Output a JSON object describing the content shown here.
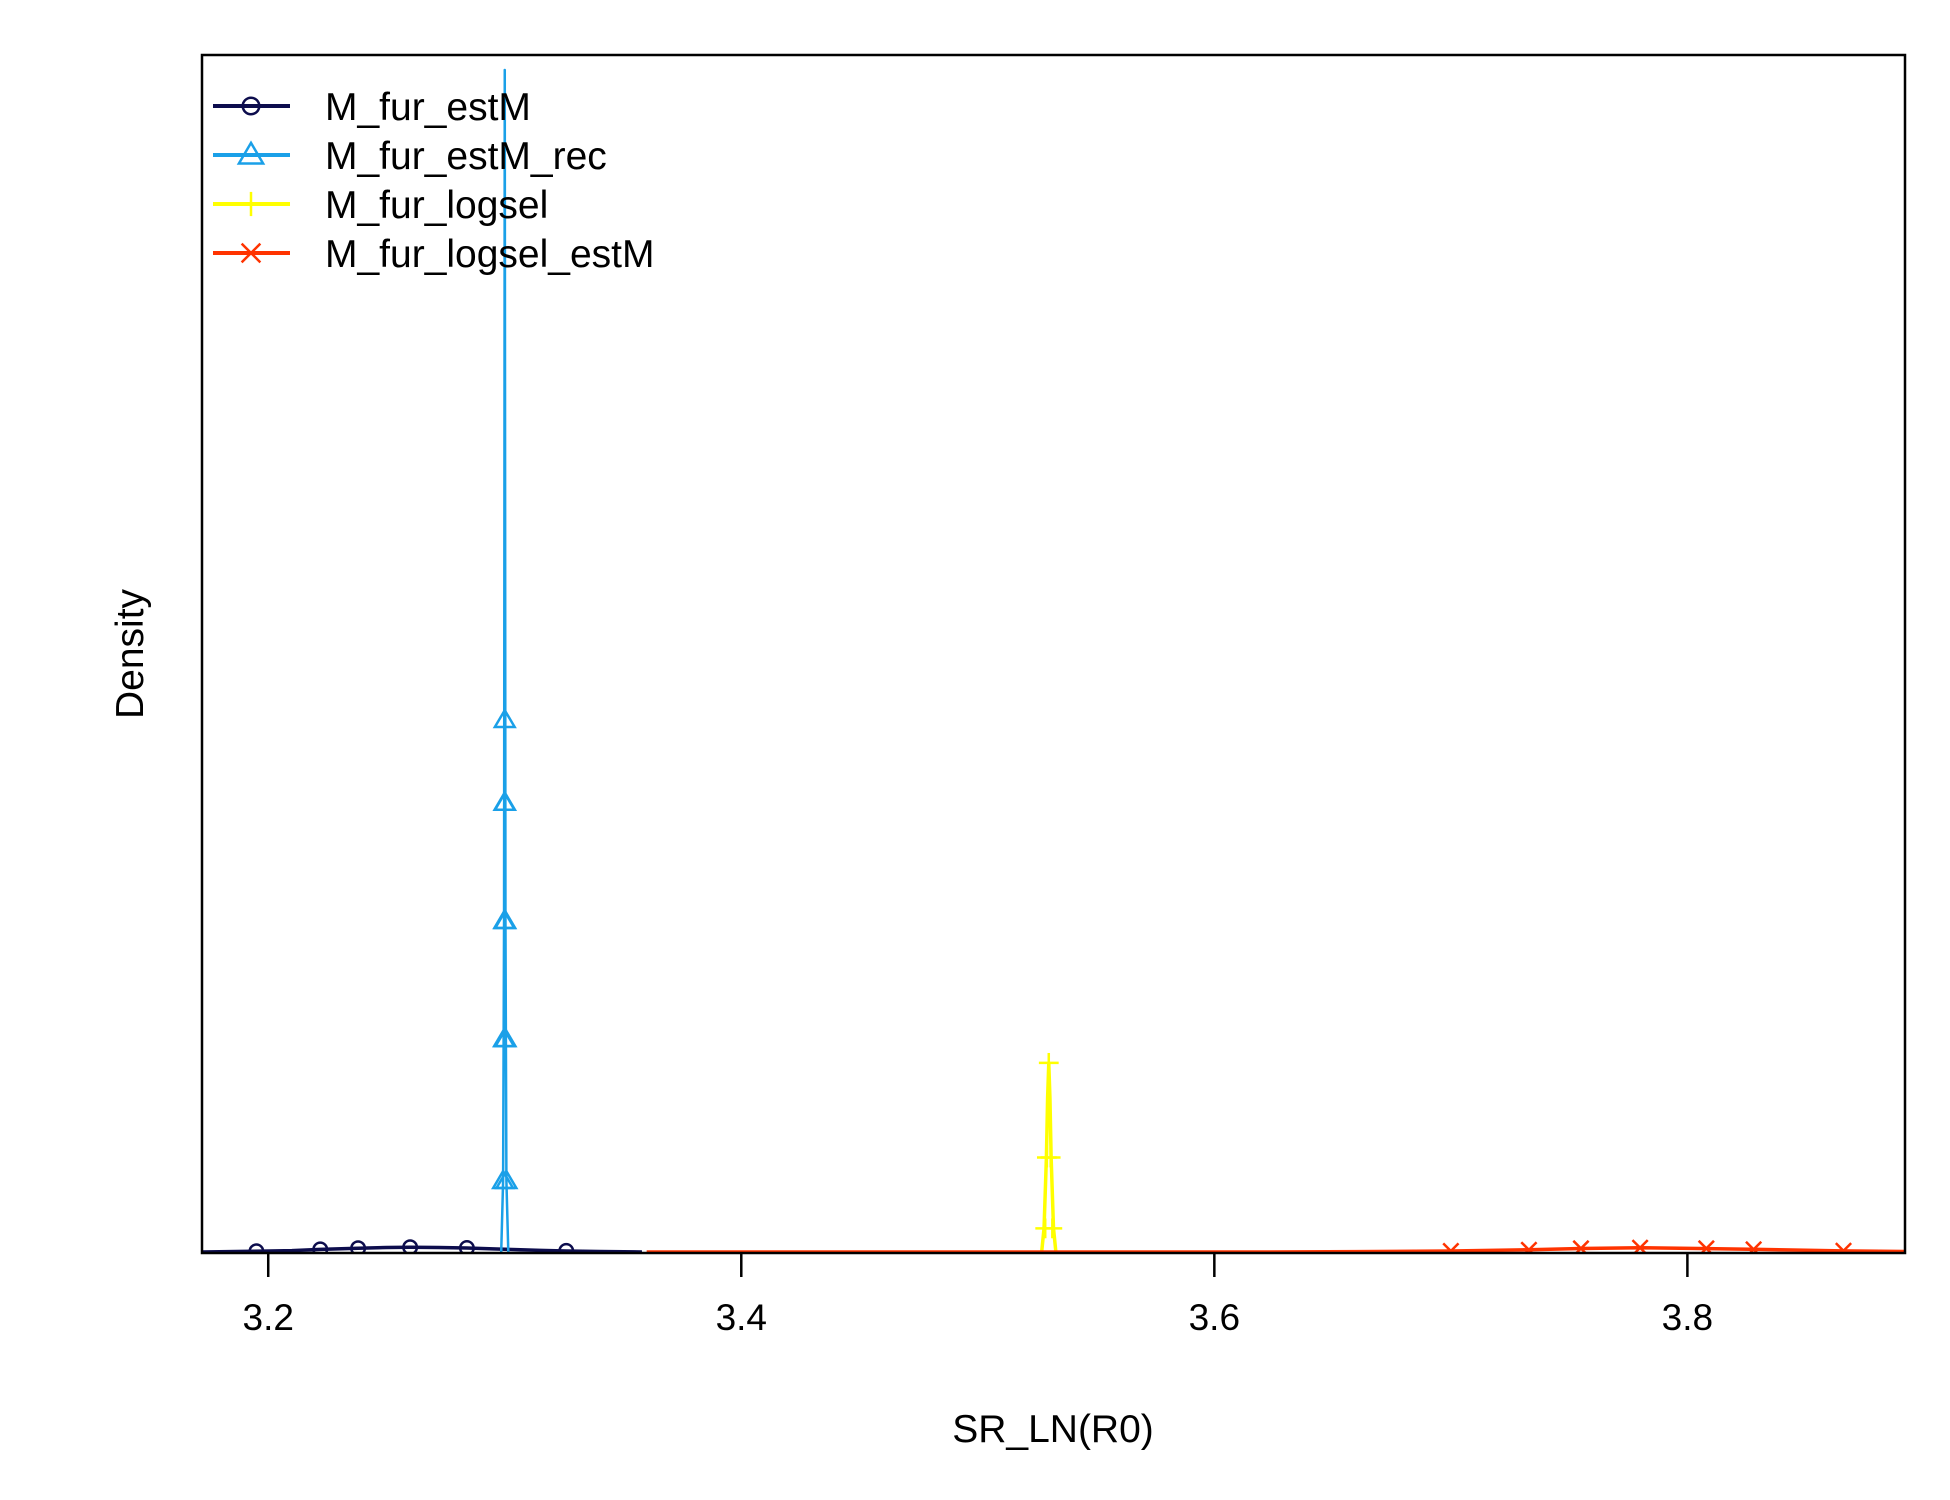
{
  "chart_data": {
    "type": "line",
    "title": "",
    "xlabel": "SR_LN(R0)",
    "ylabel": "Density",
    "xlim": [
      3.172,
      3.892
    ],
    "ylim": [
      0,
      1
    ],
    "xticks": [
      3.2,
      3.4,
      3.6,
      3.8
    ],
    "xtick_labels": [
      "3.2",
      "3.4",
      "3.6",
      "3.8"
    ],
    "y_tick_labels_shown": false,
    "grid": false,
    "legend_position": "top-left",
    "series": [
      {
        "name": "M_fur_estM",
        "color": "#0d0d4d",
        "marker": "circle",
        "x": [
          3.172,
          3.19,
          3.21,
          3.222,
          3.238,
          3.25,
          3.26,
          3.272,
          3.284,
          3.295,
          3.305,
          3.315,
          3.326,
          3.34,
          3.358
        ],
        "y": [
          0,
          0.0005,
          0.0012,
          0.0022,
          0.0032,
          0.0038,
          0.004,
          0.0038,
          0.0034,
          0.0026,
          0.002,
          0.0014,
          0.0009,
          0.0004,
          0
        ],
        "markers_x": [
          3.195,
          3.222,
          3.238,
          3.26,
          3.284,
          3.326
        ],
        "markers_y": [
          0.0006,
          0.0022,
          0.0032,
          0.004,
          0.0034,
          0.0009
        ]
      },
      {
        "name": "M_fur_estM_rec",
        "color": "#1aa0e8",
        "marker": "triangle",
        "x": [
          3.2985,
          3.2993,
          3.2997,
          3.3,
          3.3003,
          3.3007,
          3.3015
        ],
        "y": [
          0,
          0.06,
          0.28,
          1.0,
          0.28,
          0.06,
          0
        ],
        "markers_x": [
          3.2993,
          3.2997,
          3.2998,
          3.2999,
          3.3,
          3.3001,
          3.3002,
          3.3003,
          3.3007
        ],
        "markers_y": [
          0.06,
          0.18,
          0.28,
          0.38,
          0.45,
          0.38,
          0.28,
          0.18,
          0.06
        ]
      },
      {
        "name": "M_fur_logsel",
        "color": "#ffff00",
        "marker": "plus",
        "x": [
          3.527,
          3.528,
          3.529,
          3.5295,
          3.53,
          3.5305,
          3.531,
          3.532,
          3.533
        ],
        "y": [
          0,
          0.02,
          0.08,
          0.13,
          0.16,
          0.13,
          0.08,
          0.02,
          0
        ],
        "markers_x": [
          3.5285,
          3.5292,
          3.53,
          3.5308,
          3.5315
        ],
        "markers_y": [
          0.02,
          0.08,
          0.16,
          0.08,
          0.02
        ]
      },
      {
        "name": "M_fur_logsel_estM",
        "color": "#ff3300",
        "marker": "x",
        "x": [
          3.36,
          3.45,
          3.55,
          3.62,
          3.66,
          3.7,
          3.73,
          3.755,
          3.78,
          3.805,
          3.83,
          3.865,
          3.892
        ],
        "y": [
          0,
          0,
          0,
          0,
          0.0003,
          0.0008,
          0.0018,
          0.003,
          0.0036,
          0.003,
          0.0022,
          0.001,
          0.0004
        ],
        "markers_x": [
          3.7,
          3.733,
          3.755,
          3.78,
          3.808,
          3.828,
          3.866
        ],
        "markers_y": [
          0.0008,
          0.0018,
          0.003,
          0.0036,
          0.003,
          0.0022,
          0.001
        ]
      }
    ]
  }
}
